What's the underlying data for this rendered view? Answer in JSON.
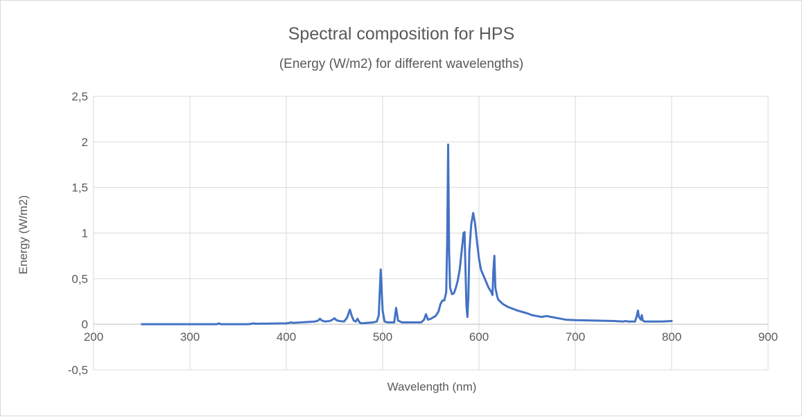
{
  "chart_data": {
    "type": "line",
    "title": "Spectral composition for HPS",
    "subtitle": "(Energy (W/m2) for different wavelengths)",
    "xlabel": "Wavelength (nm)",
    "ylabel": "Energy (W/m2)",
    "xlim": [
      200,
      900
    ],
    "ylim": [
      -0.5,
      2.5
    ],
    "x_ticks": [
      200,
      300,
      400,
      500,
      600,
      700,
      800,
      900
    ],
    "x_tick_labels": [
      "200",
      "300",
      "400",
      "500",
      "600",
      "700",
      "800",
      "900"
    ],
    "y_ticks": [
      -0.5,
      0,
      0.5,
      1,
      1.5,
      2,
      2.5
    ],
    "y_tick_labels": [
      "-0,5",
      "0",
      "0,5",
      "1",
      "1,5",
      "2",
      "2,5"
    ],
    "grid": true,
    "legend": "none",
    "line_color": "#4472c4",
    "series": [
      {
        "x": [
          250,
          300,
          328,
          330,
          332,
          360,
          364,
          366,
          368,
          400,
          403,
          405,
          407,
          430,
          433,
          435,
          437,
          440,
          445,
          448,
          450,
          452,
          455,
          460,
          463,
          466,
          468,
          470,
          472,
          474,
          476,
          478,
          490,
          494,
          496,
          498,
          500,
          502,
          505,
          512,
          514,
          516,
          520,
          540,
          543,
          545,
          547,
          550,
          555,
          558,
          560,
          562,
          564,
          566,
          567,
          568,
          569,
          570,
          572,
          574,
          576,
          578,
          580,
          582,
          584,
          585,
          586,
          587,
          588,
          589,
          590,
          592,
          594,
          596,
          598,
          600,
          602,
          606,
          610,
          613,
          614,
          615,
          616,
          617,
          619,
          620,
          622,
          625,
          630,
          640,
          650,
          655,
          660,
          665,
          670,
          675,
          680,
          690,
          700,
          720,
          740,
          750,
          752,
          755,
          762,
          764,
          765,
          766,
          768,
          769,
          770,
          772,
          780,
          790,
          800
        ],
        "y": [
          0.0,
          0.0,
          0.0,
          0.01,
          0.0,
          0.0,
          0.005,
          0.01,
          0.005,
          0.01,
          0.015,
          0.02,
          0.015,
          0.03,
          0.04,
          0.06,
          0.04,
          0.03,
          0.035,
          0.05,
          0.065,
          0.045,
          0.035,
          0.03,
          0.07,
          0.16,
          0.09,
          0.04,
          0.03,
          0.06,
          0.02,
          0.01,
          0.02,
          0.03,
          0.1,
          0.6,
          0.15,
          0.03,
          0.02,
          0.02,
          0.18,
          0.04,
          0.02,
          0.02,
          0.05,
          0.11,
          0.05,
          0.06,
          0.09,
          0.14,
          0.22,
          0.26,
          0.26,
          0.35,
          0.9,
          1.97,
          0.8,
          0.4,
          0.33,
          0.34,
          0.4,
          0.48,
          0.6,
          0.8,
          1.0,
          1.01,
          0.6,
          0.2,
          0.08,
          0.3,
          0.8,
          1.1,
          1.22,
          1.1,
          0.9,
          0.72,
          0.6,
          0.5,
          0.4,
          0.35,
          0.32,
          0.6,
          0.75,
          0.4,
          0.3,
          0.27,
          0.25,
          0.22,
          0.19,
          0.15,
          0.12,
          0.1,
          0.09,
          0.08,
          0.09,
          0.08,
          0.07,
          0.05,
          0.045,
          0.04,
          0.035,
          0.03,
          0.035,
          0.03,
          0.03,
          0.1,
          0.15,
          0.08,
          0.05,
          0.1,
          0.04,
          0.03,
          0.03,
          0.03,
          0.035
        ]
      }
    ]
  }
}
